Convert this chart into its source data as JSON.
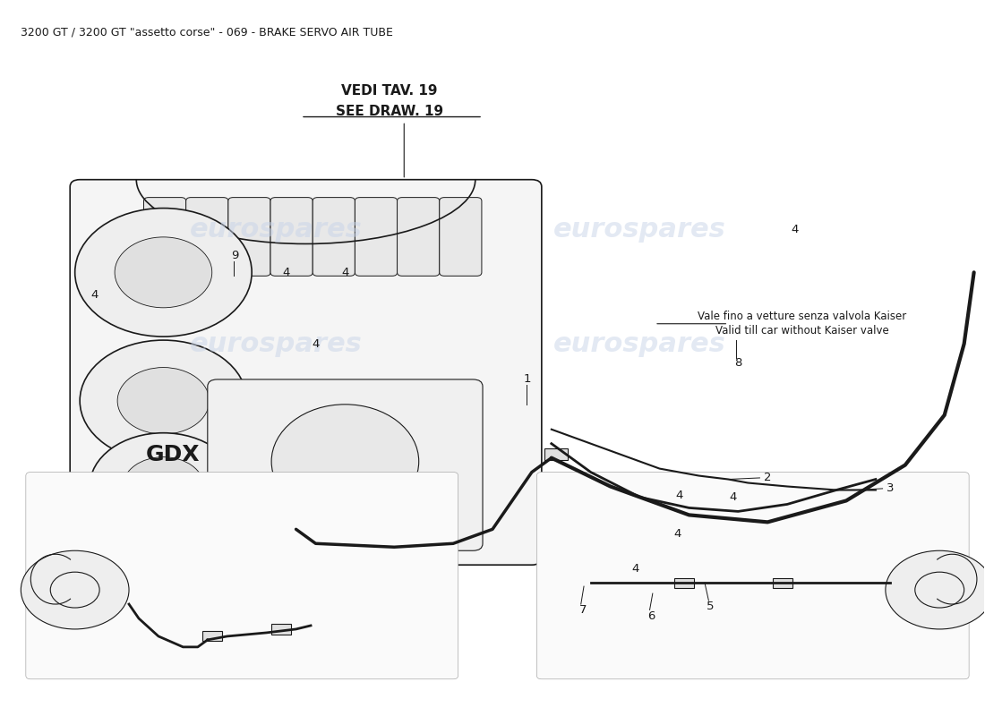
{
  "title": "3200 GT / 3200 GT \"assetto corse\" - 069 - BRAKE SERVO AIR TUBE",
  "title_fontsize": 9,
  "bg_color": "#ffffff",
  "drawing_color": "#1a1a1a",
  "watermark_text": "eurospares",
  "watermark_color": "#c8d4e8",
  "vedi_tav_line1": "VEDI TAV. 19",
  "vedi_tav_line2": "SEE DRAW. 19",
  "note_line1": "Vale fino a vetture senza valvola Kaiser",
  "note_line2": "Valid till car without Kaiser valve",
  "gdx_label": "GDX"
}
